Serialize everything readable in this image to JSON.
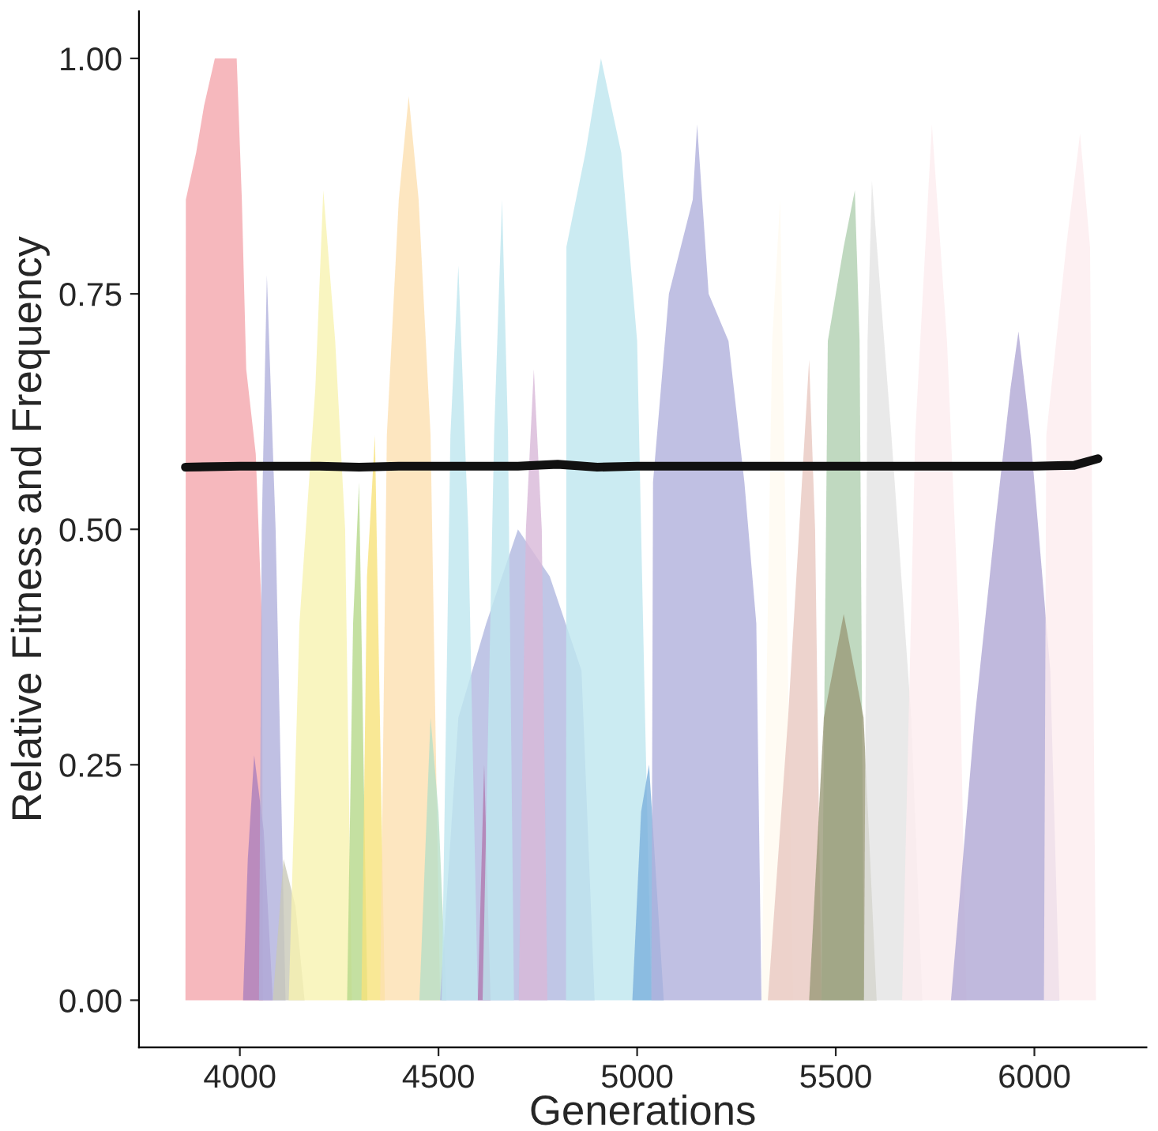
{
  "chart_data": {
    "type": "area",
    "xlabel": "Generations",
    "ylabel": "Relative Fitness and Frequency",
    "xlim": [
      3746,
      6282
    ],
    "ylim": [
      -0.05,
      1.05
    ],
    "xticks": [
      4000,
      4500,
      5000,
      5500,
      6000
    ],
    "yticks": [
      {
        "value": 0,
        "label": "0.00"
      },
      {
        "value": 0.25,
        "label": "0.25"
      },
      {
        "value": 0.5,
        "label": "0.50"
      },
      {
        "value": 0.75,
        "label": "0.75"
      },
      {
        "value": 1,
        "label": "1.00"
      }
    ],
    "grid": false,
    "series": [
      {
        "color": "#f4a6ac",
        "x": [
          3863,
          3864,
          3890,
          3910,
          3937,
          3992,
          4005,
          4016,
          4040,
          4056,
          4058
        ],
        "values": [
          0,
          0.85,
          0.9,
          0.95,
          1.0,
          1.0,
          0.85,
          0.67,
          0.58,
          0.4,
          0
        ]
      },
      {
        "color": "#ab7fbd",
        "x": [
          4008,
          4020,
          4036,
          4060,
          4083
        ],
        "values": [
          0,
          0.15,
          0.26,
          0.18,
          0
        ]
      },
      {
        "color": "#b0b0dc",
        "x": [
          4048,
          4055,
          4068,
          4090,
          4115
        ],
        "values": [
          0,
          0.5,
          0.77,
          0.5,
          0
        ]
      },
      {
        "color": "#c8c8b8",
        "x": [
          4083,
          4110,
          4140,
          4163
        ],
        "values": [
          0,
          0.15,
          0.1,
          0
        ]
      },
      {
        "color": "#f7f3b0",
        "x": [
          4123,
          4150,
          4190,
          4210,
          4240,
          4265,
          4282
        ],
        "values": [
          0,
          0.4,
          0.65,
          0.86,
          0.7,
          0.5,
          0
        ]
      },
      {
        "color": "#b5d88a",
        "x": [
          4270,
          4285,
          4300,
          4321
        ],
        "values": [
          0,
          0.4,
          0.55,
          0
        ]
      },
      {
        "color": "#f7e27a",
        "x": [
          4306,
          4320,
          4340,
          4365
        ],
        "values": [
          0,
          0.45,
          0.6,
          0
        ]
      },
      {
        "color": "#fde0b0",
        "x": [
          4353,
          4370,
          4400,
          4425,
          4450,
          4480,
          4504
        ],
        "values": [
          0,
          0.6,
          0.85,
          0.96,
          0.85,
          0.6,
          0
        ]
      },
      {
        "color": "#b7dfc7",
        "x": [
          4452,
          4480,
          4500,
          4520
        ],
        "values": [
          0,
          0.3,
          0.2,
          0
        ]
      },
      {
        "color": "#b0b8e0",
        "x": [
          4504,
          4550,
          4620,
          4700,
          4780,
          4860,
          4893
        ],
        "values": [
          0,
          0.3,
          0.4,
          0.5,
          0.45,
          0.35,
          0
        ]
      },
      {
        "color": "#bee6ef",
        "x": [
          4508,
          4530,
          4550,
          4575,
          4599
        ],
        "values": [
          0,
          0.6,
          0.78,
          0.5,
          0
        ]
      },
      {
        "color": "#b07ab0",
        "x": [
          4599,
          4615,
          4631
        ],
        "values": [
          0,
          0.25,
          0
        ]
      },
      {
        "color": "#bee6ef",
        "x": [
          4611,
          4640,
          4660,
          4675,
          4690
        ],
        "values": [
          0,
          0.6,
          0.85,
          0.6,
          0
        ]
      },
      {
        "color": "#d8b8d8",
        "x": [
          4702,
          4720,
          4740,
          4760,
          4774
        ],
        "values": [
          0,
          0.5,
          0.67,
          0.5,
          0
        ]
      },
      {
        "color": "#bee6ef",
        "x": [
          4821,
          4822,
          4870,
          4909,
          4960,
          5000,
          5020,
          5036
        ],
        "values": [
          0,
          0.8,
          0.9,
          1.0,
          0.9,
          0.7,
          0.3,
          0
        ]
      },
      {
        "color": "#7ab0dc",
        "x": [
          4988,
          5010,
          5030,
          5067
        ],
        "values": [
          0,
          0.2,
          0.25,
          0
        ]
      },
      {
        "color": "#b0b0dc",
        "x": [
          5036,
          5040,
          5080,
          5140,
          5151,
          5180,
          5230,
          5270,
          5300,
          5313
        ],
        "values": [
          0,
          0.55,
          0.75,
          0.85,
          0.93,
          0.75,
          0.7,
          0.55,
          0.4,
          0
        ]
      },
      {
        "color": "#fffaf0",
        "x": [
          5313,
          5340,
          5360,
          5393
        ],
        "values": [
          0,
          0.7,
          0.85,
          0
        ]
      },
      {
        "color": "#e8c8c0",
        "x": [
          5329,
          5380,
          5433,
          5448,
          5464
        ],
        "values": [
          0,
          0.3,
          0.68,
          0.5,
          0
        ]
      },
      {
        "color": "#b0d0b0",
        "x": [
          5464,
          5480,
          5520,
          5548,
          5560,
          5571
        ],
        "values": [
          0,
          0.7,
          0.8,
          0.86,
          0.7,
          0
        ]
      },
      {
        "color": "#9a9a78",
        "x": [
          5433,
          5470,
          5520,
          5570,
          5603
        ],
        "values": [
          0,
          0.3,
          0.41,
          0.3,
          0
        ]
      },
      {
        "color": "#e4e4e4",
        "x": [
          5571,
          5580,
          5591,
          5640,
          5690,
          5718
        ],
        "values": [
          0,
          0.7,
          0.87,
          0.6,
          0.3,
          0
        ]
      },
      {
        "color": "#fcecef",
        "x": [
          5667,
          5700,
          5742,
          5780,
          5810,
          5829
        ],
        "values": [
          0,
          0.6,
          0.93,
          0.7,
          0.4,
          0
        ]
      },
      {
        "color": "#b0a8d4",
        "x": [
          5790,
          5850,
          5900,
          5940,
          5960,
          5990,
          6040,
          6063
        ],
        "values": [
          0,
          0.3,
          0.5,
          0.65,
          0.71,
          0.6,
          0.35,
          0
        ]
      },
      {
        "color": "#fcecef",
        "x": [
          6024,
          6030,
          6080,
          6115,
          6140,
          6155
        ],
        "values": [
          0,
          0.6,
          0.8,
          0.92,
          0.8,
          0
        ]
      },
      {
        "type": "line",
        "color": "#111111",
        "x": [
          3863,
          4000,
          4100,
          4200,
          4300,
          4400,
          4500,
          4600,
          4700,
          4800,
          4900,
          5000,
          5200,
          5400,
          5600,
          5800,
          6000,
          6100,
          6160
        ],
        "values": [
          0.566,
          0.567,
          0.567,
          0.567,
          0.566,
          0.567,
          0.567,
          0.567,
          0.567,
          0.569,
          0.566,
          0.567,
          0.567,
          0.567,
          0.567,
          0.567,
          0.567,
          0.568,
          0.575
        ]
      }
    ]
  }
}
